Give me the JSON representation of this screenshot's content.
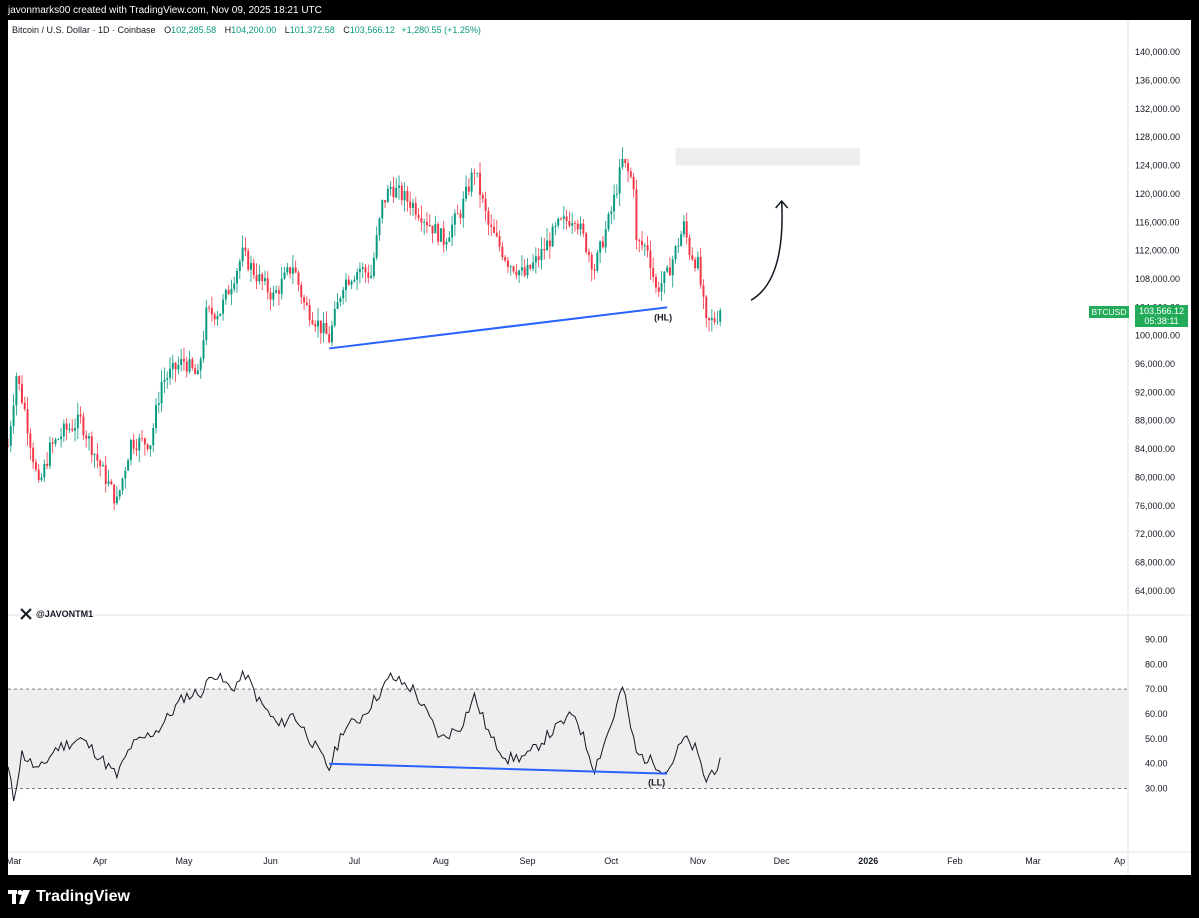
{
  "header": {
    "attribution": "javonmarks00 created with TradingView.com, Nov 09, 2025 18:21 UTC"
  },
  "legend": {
    "symbol": "Bitcoin / U.S. Dollar · 1D · Coinbase",
    "o_label": "O",
    "o_value": "102,285.58",
    "h_label": "H",
    "h_value": "104,200.00",
    "l_label": "L",
    "l_value": "101,372.58",
    "c_label": "C",
    "c_value": "103,566.12",
    "change": "+1,280.55 (+1.25%)"
  },
  "badge": {
    "ticker": "BTCUSD",
    "price": "103,566.12",
    "countdown": "05:38:11"
  },
  "watermark": {
    "handle": "@JAVONTM1"
  },
  "footer": {
    "brand": "TradingView"
  },
  "annotations": {
    "hl": "(HL)",
    "ll": "(LL)"
  },
  "colors": {
    "up": "#089981",
    "down": "#f23645",
    "trendline": "#2962ff",
    "badge": "#22ab59",
    "rsi_band": "#eeeeee",
    "target_zone": "#eeeeee"
  },
  "chart_data": [
    {
      "type": "candlestick",
      "title": "Bitcoin / U.S. Dollar · 1D · Coinbase",
      "y_ticks": [
        "140,000.00",
        "136,000.00",
        "132,000.00",
        "128,000.00",
        "124,000.00",
        "120,000.00",
        "116,000.00",
        "112,000.00",
        "108,000.00",
        "104,000.00",
        "100,000.00",
        "96,000.00",
        "92,000.00",
        "88,000.00",
        "84,000.00",
        "80,000.00",
        "76,000.00",
        "72,000.00",
        "68,000.00",
        "64,000.00"
      ],
      "ylim": [
        62000,
        142000
      ],
      "x_ticks": [
        "Mar",
        "Apr",
        "May",
        "Jun",
        "Jul",
        "Aug",
        "Sep",
        "Oct",
        "Nov",
        "Dec",
        "2026",
        "Feb",
        "Mar",
        "Ap"
      ],
      "xlim": [
        "2025-02-27",
        "2026-04-04"
      ],
      "price_path": [
        [
          "2025-02-27",
          84500
        ],
        [
          "2025-03-02",
          94500
        ],
        [
          "2025-03-05",
          89500
        ],
        [
          "2025-03-10",
          78500
        ],
        [
          "2025-03-14",
          84000
        ],
        [
          "2025-03-19",
          86500
        ],
        [
          "2025-03-25",
          88000
        ],
        [
          "2025-03-31",
          82500
        ],
        [
          "2025-04-07",
          76500
        ],
        [
          "2025-04-12",
          85000
        ],
        [
          "2025-04-19",
          85000
        ],
        [
          "2025-04-23",
          93500
        ],
        [
          "2025-05-01",
          96500
        ],
        [
          "2025-05-06",
          94000
        ],
        [
          "2025-05-09",
          103000
        ],
        [
          "2025-05-14",
          103500
        ],
        [
          "2025-05-22",
          111500
        ],
        [
          "2025-05-27",
          108500
        ],
        [
          "2025-06-02",
          105500
        ],
        [
          "2025-06-09",
          110000
        ],
        [
          "2025-06-13",
          104500
        ],
        [
          "2025-06-22",
          99500
        ],
        [
          "2025-06-27",
          107500
        ],
        [
          "2025-07-03",
          109500
        ],
        [
          "2025-07-07",
          108500
        ],
        [
          "2025-07-11",
          118500
        ],
        [
          "2025-07-14",
          121000
        ],
        [
          "2025-07-22",
          118500
        ],
        [
          "2025-08-02",
          113500
        ],
        [
          "2025-08-08",
          117500
        ],
        [
          "2025-08-13",
          123500
        ],
        [
          "2025-08-18",
          115500
        ],
        [
          "2025-08-25",
          110500
        ],
        [
          "2025-08-31",
          108500
        ],
        [
          "2025-09-05",
          111000
        ],
        [
          "2025-09-12",
          115500
        ],
        [
          "2025-09-18",
          117000
        ],
        [
          "2025-09-25",
          109500
        ],
        [
          "2025-10-01",
          117500
        ],
        [
          "2025-10-05",
          124500
        ],
        [
          "2025-10-09",
          121500
        ],
        [
          "2025-10-10",
          113000
        ],
        [
          "2025-10-14",
          112500
        ],
        [
          "2025-10-17",
          106500
        ],
        [
          "2025-10-21",
          108500
        ],
        [
          "2025-10-27",
          115500
        ],
        [
          "2025-10-29",
          112000
        ],
        [
          "2025-11-01",
          110000
        ],
        [
          "2025-11-04",
          101500
        ],
        [
          "2025-11-07",
          102300
        ],
        [
          "2025-11-09",
          103566
        ]
      ],
      "last_close": 103566.12,
      "trendline": {
        "from": [
          "2025-06-22",
          98200
        ],
        "to": [
          "2025-10-21",
          104000
        ],
        "color": "#2962ff",
        "label": "(HL)"
      },
      "target_zone": {
        "x": [
          "2025-10-24",
          "2025-12-29"
        ],
        "y": [
          124000,
          126500
        ]
      },
      "projection_arrow": {
        "from": [
          "2025-11-20",
          105000
        ],
        "to": [
          "2025-12-01",
          119000
        ]
      }
    },
    {
      "type": "line",
      "title": "",
      "y_ticks": [
        "90.00",
        "80.00",
        "70.00",
        "60.00",
        "50.00",
        "40.00",
        "30.00"
      ],
      "ylim": [
        27,
        93
      ],
      "band": [
        30,
        70
      ],
      "values_path": [
        [
          "2025-02-27",
          38
        ],
        [
          "2025-03-01",
          26
        ],
        [
          "2025-03-04",
          44
        ],
        [
          "2025-03-10",
          37
        ],
        [
          "2025-03-16",
          46
        ],
        [
          "2025-03-25",
          50
        ],
        [
          "2025-03-30",
          45
        ],
        [
          "2025-04-07",
          35
        ],
        [
          "2025-04-12",
          47
        ],
        [
          "2025-04-22",
          54
        ],
        [
          "2025-05-01",
          67
        ],
        [
          "2025-05-08",
          69
        ],
        [
          "2025-05-11",
          77
        ],
        [
          "2025-05-18",
          70
        ],
        [
          "2025-05-23",
          76
        ],
        [
          "2025-05-28",
          65
        ],
        [
          "2025-06-04",
          55
        ],
        [
          "2025-06-09",
          60
        ],
        [
          "2025-06-14",
          52
        ],
        [
          "2025-06-22",
          38
        ],
        [
          "2025-06-27",
          54
        ],
        [
          "2025-07-03",
          58
        ],
        [
          "2025-07-11",
          70
        ],
        [
          "2025-07-14",
          75
        ],
        [
          "2025-07-22",
          70
        ],
        [
          "2025-08-01",
          50
        ],
        [
          "2025-08-08",
          55
        ],
        [
          "2025-08-13",
          67
        ],
        [
          "2025-08-19",
          50
        ],
        [
          "2025-08-25",
          42
        ],
        [
          "2025-09-01",
          43
        ],
        [
          "2025-09-07",
          50
        ],
        [
          "2025-09-14",
          57
        ],
        [
          "2025-09-18",
          60
        ],
        [
          "2025-09-25",
          38
        ],
        [
          "2025-10-01",
          56
        ],
        [
          "2025-10-05",
          71
        ],
        [
          "2025-10-10",
          44
        ],
        [
          "2025-10-17",
          40
        ],
        [
          "2025-10-21",
          37
        ],
        [
          "2025-10-27",
          50
        ],
        [
          "2025-10-31",
          46
        ],
        [
          "2025-11-04",
          33
        ],
        [
          "2025-11-06",
          37
        ],
        [
          "2025-11-09",
          40
        ]
      ],
      "trendline": {
        "from": [
          "2025-06-22",
          40
        ],
        "to": [
          "2025-10-21",
          36
        ],
        "color": "#2962ff",
        "label": "(LL)"
      }
    }
  ]
}
